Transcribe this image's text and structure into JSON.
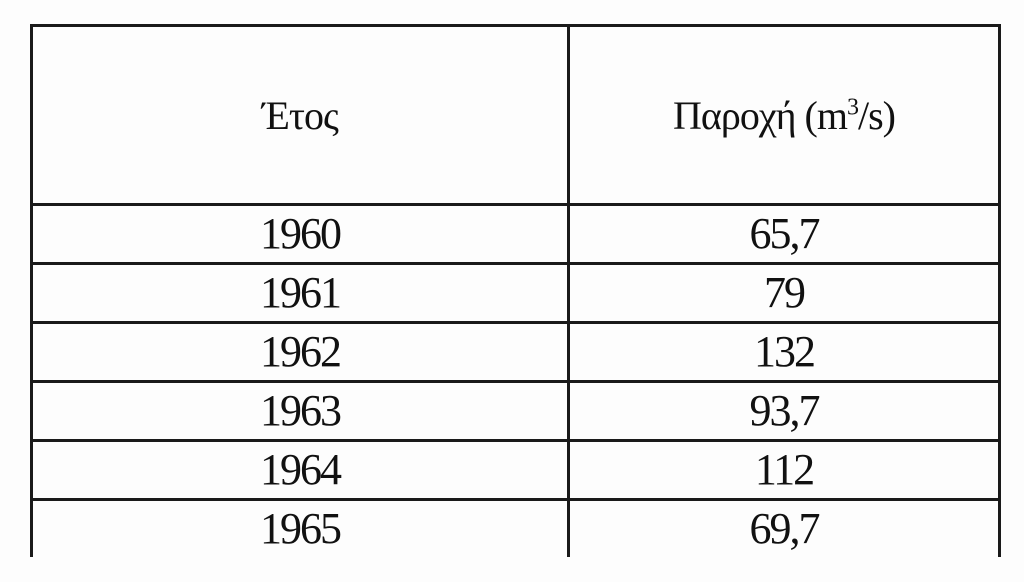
{
  "table": {
    "headers": {
      "year": "Έτος",
      "flow_prefix": "Παροχή (m",
      "flow_sup": "3",
      "flow_suffix": "/s)"
    },
    "rows": [
      {
        "year": "1960",
        "flow": "65,7"
      },
      {
        "year": "1961",
        "flow": "79"
      },
      {
        "year": "1962",
        "flow": "132"
      },
      {
        "year": "1963",
        "flow": "93,7"
      },
      {
        "year": "1964",
        "flow": "112"
      },
      {
        "year": "1965",
        "flow": "69,7"
      }
    ]
  }
}
